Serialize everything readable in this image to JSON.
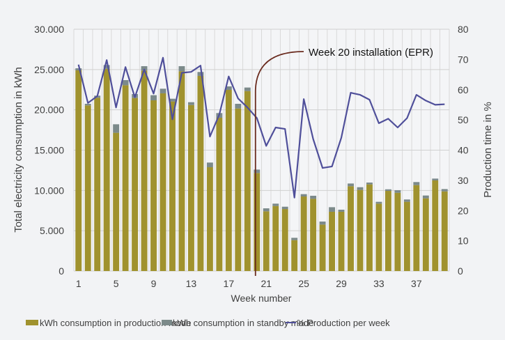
{
  "chart_data": {
    "type": "bar",
    "stacked": true,
    "xlabel": "Week number",
    "ylabel": "Total electricity consumption in kWh",
    "y2label": "Production time in %",
    "ylim": [
      0,
      30000
    ],
    "y2lim": [
      0,
      80
    ],
    "yticks": [
      "0",
      "5.000",
      "10.000",
      "15.000",
      "20.000",
      "25.000",
      "30.000"
    ],
    "y2ticks": [
      "0",
      "10",
      "20",
      "30",
      "40",
      "50",
      "60",
      "70",
      "80"
    ],
    "xticks": [
      "1",
      "5",
      "9",
      "13",
      "17",
      "21",
      "25",
      "29",
      "33",
      "37"
    ],
    "grid": true,
    "legend_position": "bottom",
    "x": [
      1,
      2,
      3,
      4,
      5,
      6,
      7,
      8,
      9,
      10,
      11,
      12,
      13,
      14,
      15,
      16,
      17,
      18,
      19,
      20,
      21,
      22,
      23,
      24,
      25,
      26,
      27,
      28,
      29,
      30,
      31,
      32,
      33,
      34,
      35,
      36,
      37,
      38,
      39,
      40
    ],
    "series": [
      {
        "name": "kWh consumption in production mode",
        "type": "bar",
        "axis": "left",
        "color": "#a0922e",
        "values": [
          24900,
          20550,
          21500,
          25100,
          17150,
          23050,
          21470,
          24870,
          21180,
          22050,
          21040,
          24780,
          20600,
          24210,
          12880,
          19020,
          22480,
          20170,
          22330,
          12160,
          7410,
          8070,
          7690,
          3830,
          9250,
          8960,
          5760,
          7350,
          7350,
          10520,
          10060,
          10750,
          8360,
          9940,
          9710,
          8590,
          10660,
          9020,
          11240,
          9880
        ]
      },
      {
        "name": "kWh consumption in standby mode",
        "type": "bar",
        "axis": "left",
        "color": "#7c8a8a",
        "values": [
          260,
          200,
          260,
          460,
          1060,
          640,
          490,
          550,
          640,
          570,
          340,
          640,
          350,
          490,
          580,
          580,
          430,
          580,
          440,
          430,
          370,
          290,
          290,
          290,
          290,
          380,
          380,
          570,
          260,
          340,
          340,
          230,
          230,
          200,
          320,
          290,
          380,
          350,
          230,
          290
        ]
      },
      {
        "name": "% Production per week",
        "type": "line",
        "axis": "right",
        "color": "#4f4f9a",
        "values": [
          68.3,
          55.6,
          57.9,
          69.8,
          54.1,
          67.5,
          57.5,
          66.7,
          58.7,
          70.6,
          50.2,
          65.6,
          65.9,
          68.0,
          44.5,
          51.8,
          64.4,
          57.1,
          54.1,
          50.6,
          41.4,
          47.5,
          47.0,
          24.3,
          56.9,
          43.7,
          34.1,
          34.6,
          44.1,
          59.0,
          58.3,
          56.7,
          48.9,
          50.4,
          47.5,
          50.6,
          58.3,
          56.4,
          55.0,
          55.2
        ]
      }
    ],
    "annotation": {
      "text": "Week 20 installation (EPR)",
      "week": 20,
      "color": "#6a2b1e"
    }
  }
}
